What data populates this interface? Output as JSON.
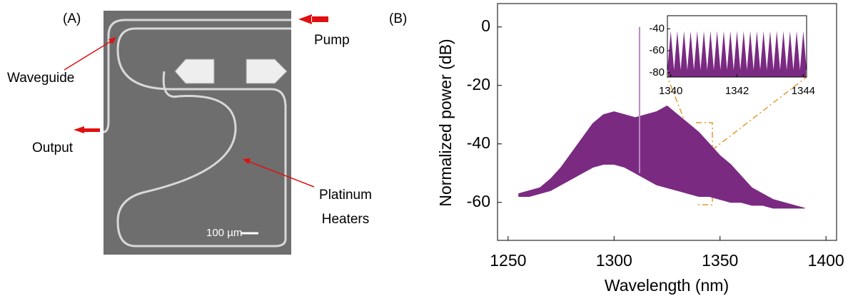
{
  "panel_a": {
    "label": "(A)",
    "pump": "Pump",
    "waveguide": "Waveguide",
    "output": "Output",
    "heaters": [
      "Platinum",
      "Heaters"
    ],
    "scale_bar": "100 µm"
  },
  "chart_data": {
    "type": "area",
    "label": "(B)",
    "xlabel": "Wavelength (nm)",
    "ylabel": "Normalized power (dB)",
    "xlim": [
      1245,
      1405
    ],
    "ylim": [
      -73,
      8
    ],
    "xticks": [
      1250,
      1300,
      1350,
      1400
    ],
    "yticks": [
      0,
      -20,
      -40,
      -60
    ],
    "x": [
      1255,
      1260,
      1265,
      1270,
      1275,
      1280,
      1285,
      1290,
      1295,
      1300,
      1305,
      1310,
      1315,
      1320,
      1325,
      1330,
      1335,
      1340,
      1345,
      1350,
      1355,
      1360,
      1365,
      1370,
      1375,
      1380,
      1385,
      1390
    ],
    "series": [
      {
        "color": "#7b2a82",
        "values": [
          -57,
          -56,
          -55,
          -52,
          -48,
          -43,
          -38,
          -33,
          -30,
          -29,
          -30,
          -31,
          -30,
          -29,
          -27,
          -30,
          -33,
          -36,
          -40,
          -44,
          -47,
          -51,
          -55,
          -57,
          -59,
          -60,
          -61,
          -62
        ]
      },
      {
        "color": "#7b2a82",
        "values": [
          -58,
          -58,
          -57,
          -56,
          -54,
          -52,
          -50,
          -48,
          -47,
          -47,
          -48,
          -50,
          -52,
          -54,
          -55,
          -56,
          -57,
          -58,
          -58,
          -59,
          -60,
          -60,
          -61,
          -61,
          -62,
          -62,
          -62,
          -62
        ]
      }
    ],
    "pump_line": {
      "x": 1312,
      "value": 0,
      "color": "#b58cc0"
    },
    "inset": {
      "type": "comb",
      "xlim": [
        1339.9,
        1344.1
      ],
      "ylim": [
        -84,
        -28
      ],
      "xticks": [
        1340,
        1342,
        1344
      ],
      "yticks": [
        -40,
        -60,
        -80
      ],
      "color": "#7b2a82",
      "x": [
        1340.0,
        1340.2,
        1340.4,
        1340.6,
        1340.8,
        1341.0,
        1341.2,
        1341.4,
        1341.6,
        1341.8,
        1342.0,
        1342.2,
        1342.4,
        1342.6,
        1342.8,
        1343.0,
        1343.2,
        1343.4,
        1343.6,
        1343.8,
        1344.0
      ],
      "values": [
        -42,
        -42,
        -42,
        -42,
        -42,
        -42,
        -42,
        -42,
        -42,
        -42,
        -42,
        -42,
        -42,
        -42,
        -42,
        -42,
        -42,
        -42,
        -42,
        -42,
        -42
      ]
    }
  }
}
